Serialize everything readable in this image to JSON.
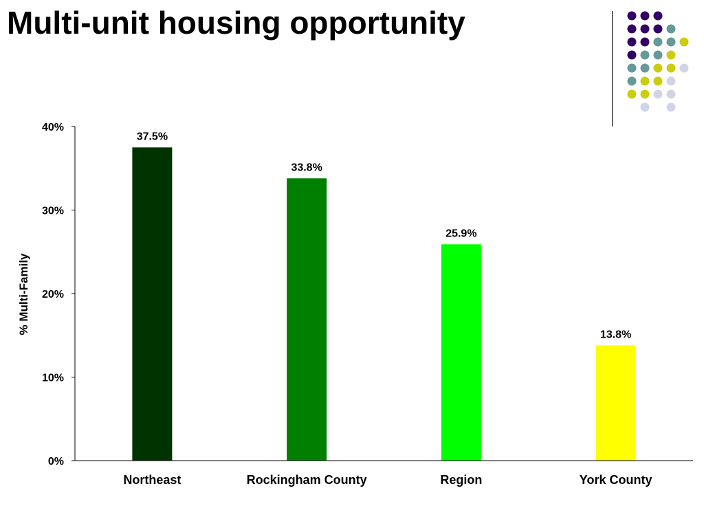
{
  "slide": {
    "title": "Multi-unit housing opportunity"
  },
  "decoration": {
    "dot_colors": {
      "purple": "#330066",
      "teal": "#669999",
      "olive": "#cccc11",
      "lavender": "#d3d3e8"
    }
  },
  "chart_data": {
    "type": "bar",
    "categories": [
      "Northeast",
      "Rockingham County",
      "Region",
      "York County"
    ],
    "values": [
      37.5,
      33.8,
      25.9,
      13.8
    ],
    "value_labels": [
      "37.5%",
      "33.8%",
      "25.9%",
      "13.8%"
    ],
    "bar_colors": [
      "#003300",
      "#007f00",
      "#00ff00",
      "#ffff00"
    ],
    "title": "",
    "xlabel": "",
    "ylabel": "% Multi-Family",
    "ylim": [
      0,
      40
    ],
    "yticks": [
      0,
      10,
      20,
      30,
      40
    ],
    "ytick_labels": [
      "0%",
      "10%",
      "20%",
      "30%",
      "40%"
    ],
    "grid": false,
    "legend": "none"
  }
}
